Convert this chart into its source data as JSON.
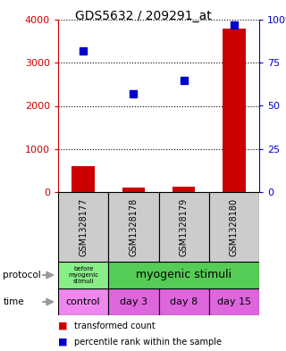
{
  "title": "GDS5632 / 209291_at",
  "samples": [
    "GSM1328177",
    "GSM1328178",
    "GSM1328179",
    "GSM1328180"
  ],
  "transformed_counts": [
    600,
    100,
    130,
    3800
  ],
  "percentile_ranks": [
    82,
    57,
    65,
    97
  ],
  "ylim_left": [
    0,
    4000
  ],
  "ylim_right": [
    0,
    100
  ],
  "yticks_left": [
    0,
    1000,
    2000,
    3000,
    4000
  ],
  "yticks_right": [
    0,
    25,
    50,
    75,
    100
  ],
  "ytick_labels_right": [
    "0",
    "25",
    "50",
    "75",
    "100%"
  ],
  "bar_color": "#cc0000",
  "dot_color": "#0000cc",
  "time_labels": [
    "control",
    "day 3",
    "day 8",
    "day 15"
  ],
  "sample_bg_color": "#cccccc",
  "left_axis_color": "#cc0000",
  "right_axis_color": "#0000cc",
  "legend_red_label": "transformed count",
  "legend_blue_label": "percentile rank within the sample",
  "protocol_color_left": "#88ee88",
  "protocol_color_right": "#55cc55",
  "time_color_control": "#ee88ee",
  "time_color_rest": "#dd66dd",
  "protocol_text_left": "before\nmyogenic\nstimuli",
  "protocol_text_right": "myogenic stimuli"
}
